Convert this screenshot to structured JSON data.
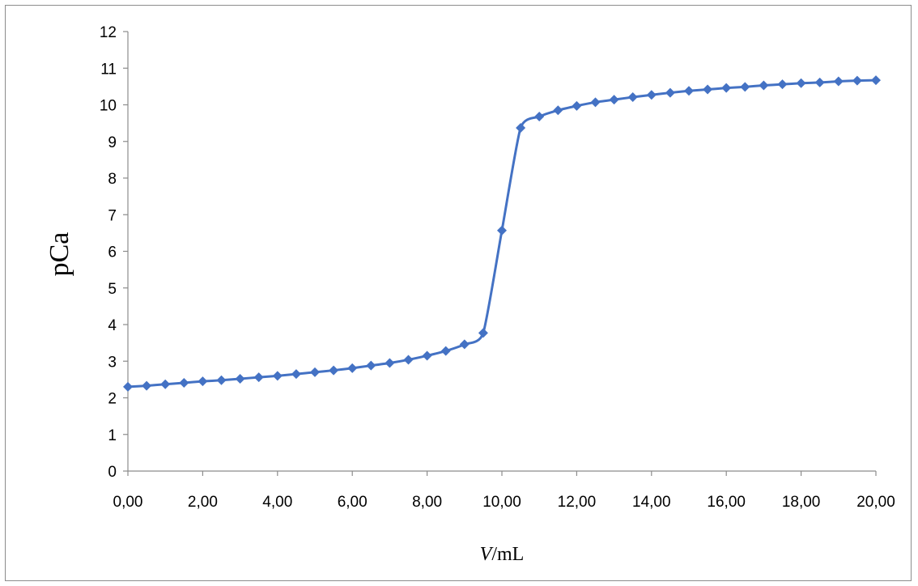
{
  "chart_data": {
    "type": "line",
    "title": "",
    "xlabel_var": "V",
    "xlabel_unit": "/mL",
    "ylabel": "pCa",
    "xlim": [
      0,
      20
    ],
    "ylim": [
      0,
      12
    ],
    "x_ticks": [
      "0,00",
      "2,00",
      "4,00",
      "6,00",
      "8,00",
      "10,00",
      "12,00",
      "14,00",
      "16,00",
      "18,00",
      "20,00"
    ],
    "x_tick_values": [
      0,
      2,
      4,
      6,
      8,
      10,
      12,
      14,
      16,
      18,
      20
    ],
    "y_ticks": [
      "0",
      "1",
      "2",
      "3",
      "4",
      "5",
      "6",
      "7",
      "8",
      "9",
      "10",
      "11",
      "12"
    ],
    "y_tick_values": [
      0,
      1,
      2,
      3,
      4,
      5,
      6,
      7,
      8,
      9,
      10,
      11,
      12
    ],
    "grid": false,
    "legend": "none",
    "series": [
      {
        "color": "#4472C4",
        "marker": "diamond",
        "x": [
          0,
          0.5,
          1,
          1.5,
          2,
          2.5,
          3,
          3.5,
          4,
          4.5,
          5,
          5.5,
          6,
          6.5,
          7,
          7.5,
          8,
          8.5,
          9,
          9.5,
          10,
          10.5,
          11,
          11.5,
          12,
          12.5,
          13,
          13.5,
          14,
          14.5,
          15,
          15.5,
          16,
          16.5,
          17,
          17.5,
          18,
          18.5,
          19,
          19.5,
          20
        ],
        "y": [
          2.3,
          2.33,
          2.37,
          2.41,
          2.45,
          2.48,
          2.52,
          2.56,
          2.6,
          2.65,
          2.7,
          2.75,
          2.81,
          2.88,
          2.95,
          3.04,
          3.15,
          3.28,
          3.46,
          3.77,
          6.57,
          9.37,
          9.68,
          9.85,
          9.97,
          10.07,
          10.14,
          10.21,
          10.27,
          10.33,
          10.38,
          10.42,
          10.46,
          10.49,
          10.53,
          10.56,
          10.59,
          10.61,
          10.64,
          10.66,
          10.67
        ]
      }
    ]
  }
}
